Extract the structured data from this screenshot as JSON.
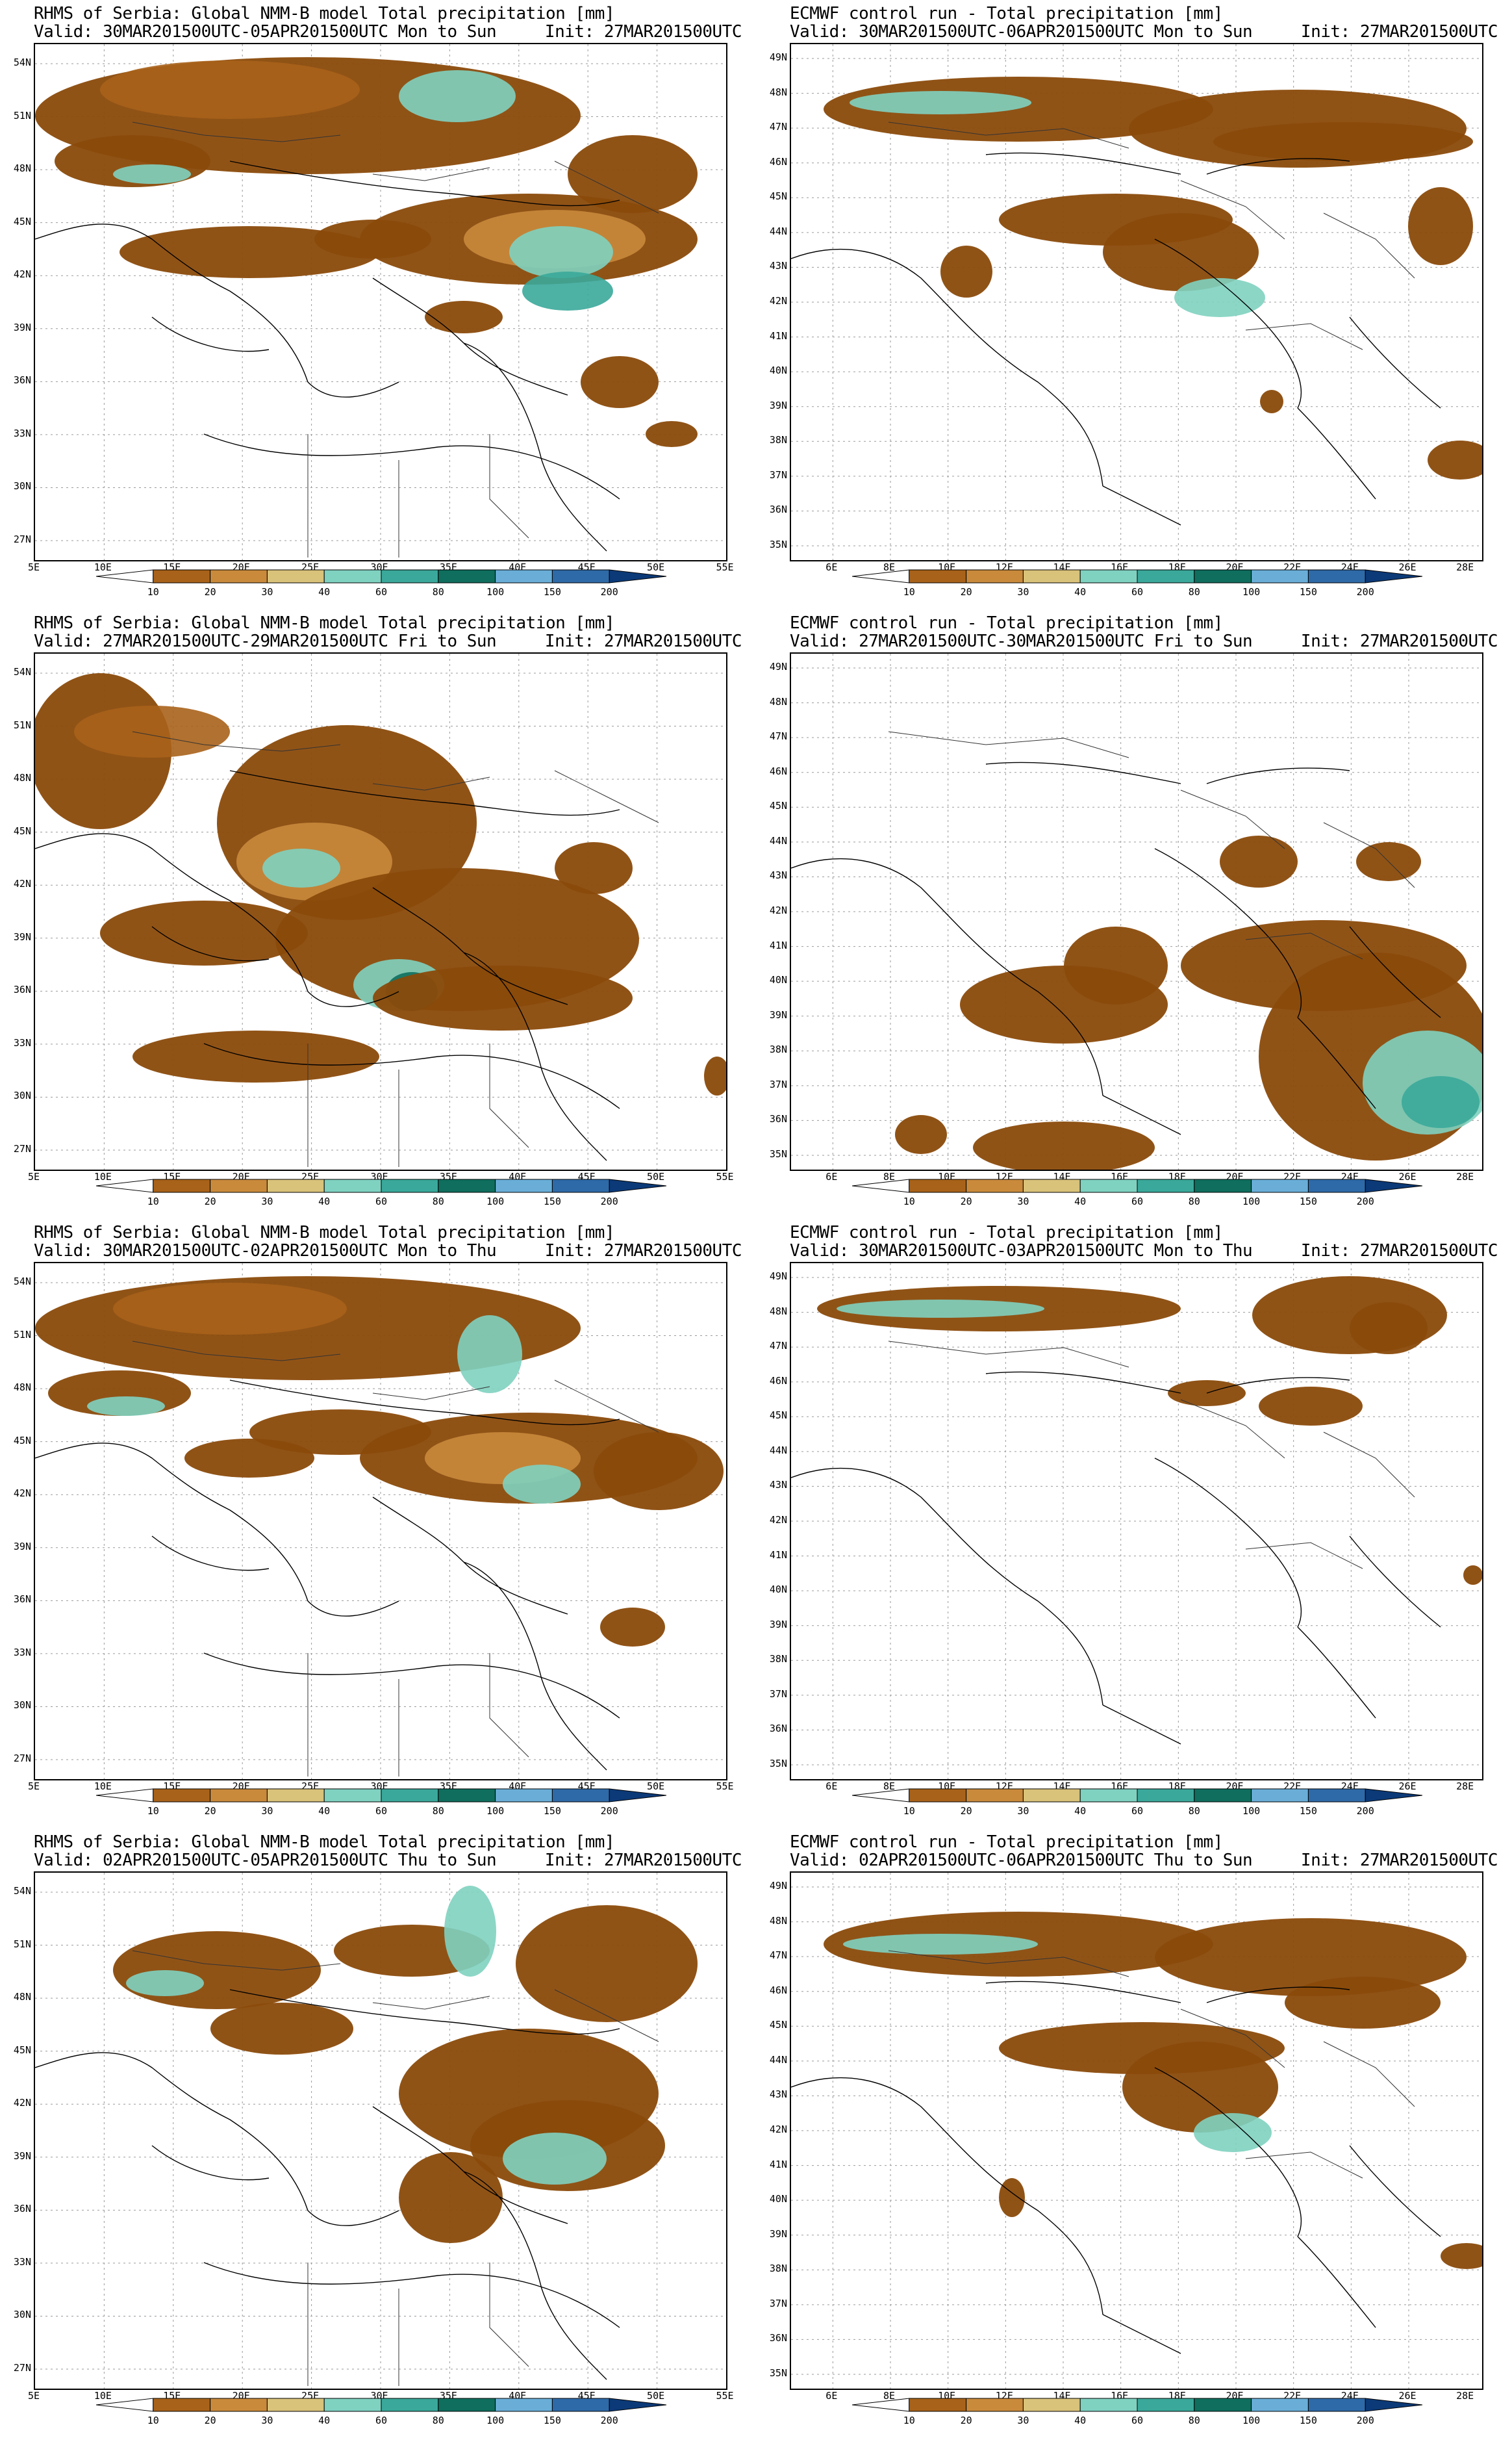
{
  "palette": {
    "levels": [
      "10",
      "20",
      "30",
      "40",
      "60",
      "80",
      "100",
      "150",
      "200"
    ],
    "colors": [
      "#8a4a0a",
      "#a8621a",
      "#c98a3c",
      "#d9c27a",
      "#7fd1c0",
      "#3aa89a",
      "#0f6e5e",
      "#6aaed8",
      "#2e6aa8",
      "#0c3a78"
    ]
  },
  "panels": [
    {
      "title": "RHMS of Serbia: Global NMM-B model Total precipitation [mm]",
      "valid": "Valid: 30MAR201500UTC-05APR201500UTC Mon to Sun",
      "init": "Init: 27MAR201500UTC",
      "lat_labels": [
        "54N",
        "51N",
        "48N",
        "45N",
        "42N",
        "39N",
        "36N",
        "33N",
        "30N",
        "27N"
      ],
      "lon_labels": [
        "5E",
        "10E",
        "15E",
        "20E",
        "25E",
        "30E",
        "35E",
        "40E",
        "45E",
        "50E",
        "55E"
      ]
    },
    {
      "title": "ECMWF control run - Total precipitation [mm]",
      "valid": "Valid: 30MAR201500UTC-06APR201500UTC Mon to Sun",
      "init": "Init: 27MAR201500UTC",
      "lat_labels": [
        "49N",
        "48N",
        "47N",
        "46N",
        "45N",
        "44N",
        "43N",
        "42N",
        "41N",
        "40N",
        "39N",
        "38N",
        "37N",
        "36N",
        "35N"
      ],
      "lon_labels": [
        "6E",
        "8E",
        "10E",
        "12E",
        "14E",
        "16E",
        "18E",
        "20E",
        "22E",
        "24E",
        "26E",
        "28E"
      ]
    },
    {
      "title": "RHMS of Serbia: Global NMM-B model Total precipitation [mm]",
      "valid": "Valid: 27MAR201500UTC-29MAR201500UTC Fri to Sun",
      "init": "Init: 27MAR201500UTC",
      "lat_labels": [
        "54N",
        "51N",
        "48N",
        "45N",
        "42N",
        "39N",
        "36N",
        "33N",
        "30N",
        "27N"
      ],
      "lon_labels": [
        "5E",
        "10E",
        "15E",
        "20E",
        "25E",
        "30E",
        "35E",
        "40E",
        "45E",
        "50E",
        "55E"
      ]
    },
    {
      "title": "ECMWF control run - Total precipitation [mm]",
      "valid": "Valid: 27MAR201500UTC-30MAR201500UTC Fri to Sun",
      "init": "Init: 27MAR201500UTC",
      "lat_labels": [
        "49N",
        "48N",
        "47N",
        "46N",
        "45N",
        "44N",
        "43N",
        "42N",
        "41N",
        "40N",
        "39N",
        "38N",
        "37N",
        "36N",
        "35N"
      ],
      "lon_labels": [
        "6E",
        "8E",
        "10E",
        "12E",
        "14E",
        "16E",
        "18E",
        "20E",
        "22E",
        "24E",
        "26E",
        "28E"
      ]
    },
    {
      "title": "RHMS of Serbia: Global NMM-B model Total precipitation [mm]",
      "valid": "Valid: 30MAR201500UTC-02APR201500UTC Mon to Thu",
      "init": "Init: 27MAR201500UTC",
      "lat_labels": [
        "54N",
        "51N",
        "48N",
        "45N",
        "42N",
        "39N",
        "36N",
        "33N",
        "30N",
        "27N"
      ],
      "lon_labels": [
        "5E",
        "10E",
        "15E",
        "20E",
        "25E",
        "30E",
        "35E",
        "40E",
        "45E",
        "50E",
        "55E"
      ]
    },
    {
      "title": "ECMWF control run - Total precipitation [mm]",
      "valid": "Valid: 30MAR201500UTC-03APR201500UTC Mon to Thu",
      "init": "Init: 27MAR201500UTC",
      "lat_labels": [
        "49N",
        "48N",
        "47N",
        "46N",
        "45N",
        "44N",
        "43N",
        "42N",
        "41N",
        "40N",
        "39N",
        "38N",
        "37N",
        "36N",
        "35N"
      ],
      "lon_labels": [
        "6E",
        "8E",
        "10E",
        "12E",
        "14E",
        "16E",
        "18E",
        "20E",
        "22E",
        "24E",
        "26E",
        "28E"
      ]
    },
    {
      "title": "RHMS of Serbia: Global NMM-B model Total precipitation [mm]",
      "valid": "Valid: 02APR201500UTC-05APR201500UTC Thu to Sun",
      "init": "Init: 27MAR201500UTC",
      "lat_labels": [
        "54N",
        "51N",
        "48N",
        "45N",
        "42N",
        "39N",
        "36N",
        "33N",
        "30N",
        "27N"
      ],
      "lon_labels": [
        "5E",
        "10E",
        "15E",
        "20E",
        "25E",
        "30E",
        "35E",
        "40E",
        "45E",
        "50E",
        "55E"
      ]
    },
    {
      "title": "ECMWF control run - Total precipitation [mm]",
      "valid": "Valid: 02APR201500UTC-06APR201500UTC Thu to Sun",
      "init": "Init: 27MAR201500UTC",
      "lat_labels": [
        "49N",
        "48N",
        "47N",
        "46N",
        "45N",
        "44N",
        "43N",
        "42N",
        "41N",
        "40N",
        "39N",
        "38N",
        "37N",
        "36N",
        "35N"
      ],
      "lon_labels": [
        "6E",
        "8E",
        "10E",
        "12E",
        "14E",
        "16E",
        "18E",
        "20E",
        "22E",
        "24E",
        "26E",
        "28E"
      ]
    }
  ]
}
